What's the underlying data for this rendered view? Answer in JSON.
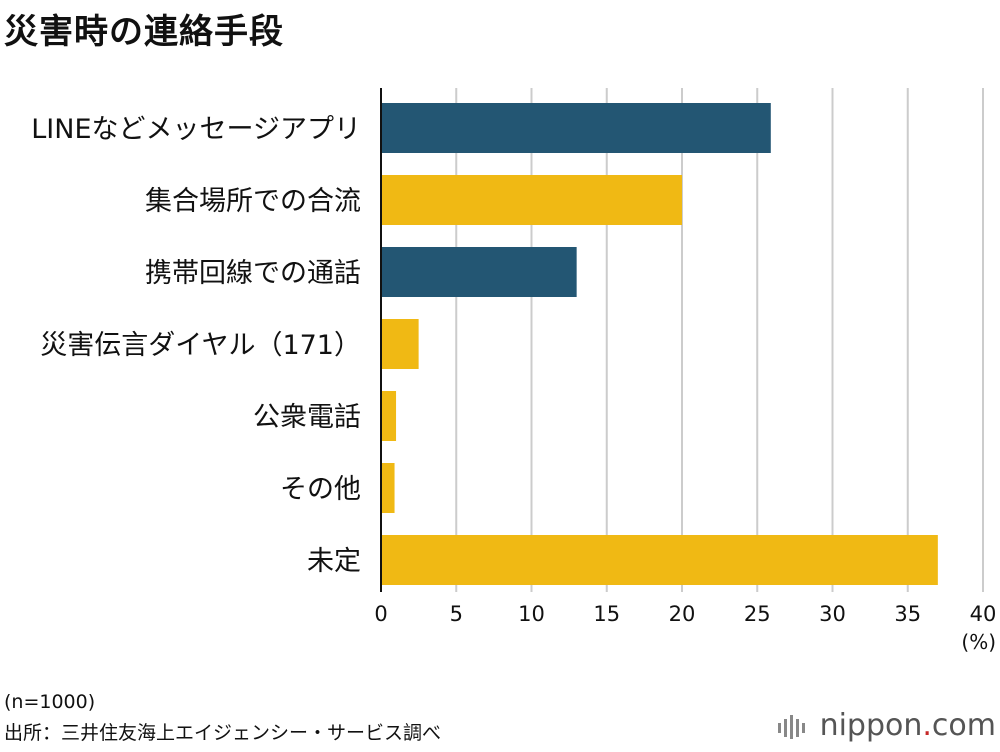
{
  "title": "災害時の連絡手段",
  "unit_label": "(%)",
  "note_n": "(n=1000)",
  "source": "出所：三井住友海上エイジェンシー・サービス調べ",
  "logo": {
    "main": "nippon",
    "dot": ".",
    "tld": "com"
  },
  "colors": {
    "navy": "#235673",
    "gold": "#f0b914",
    "grid": "#cccccc",
    "axis": "#111111"
  },
  "chart_data": {
    "type": "bar",
    "orientation": "horizontal",
    "categories": [
      "LINEなどメッセージアプリ",
      "集合場所での合流",
      "携帯回線での通話",
      "災害伝言ダイヤル（171）",
      "公衆電話",
      "その他",
      "未定"
    ],
    "values": [
      25.9,
      20.0,
      13.0,
      2.5,
      1.0,
      0.9,
      37.0
    ],
    "bar_colors": [
      "#235673",
      "#f0b914",
      "#235673",
      "#f0b914",
      "#f0b914",
      "#f0b914",
      "#f0b914"
    ],
    "xlim": [
      0,
      40
    ],
    "xticks": [
      0,
      5,
      10,
      15,
      20,
      25,
      30,
      35,
      40
    ],
    "grid": true
  }
}
